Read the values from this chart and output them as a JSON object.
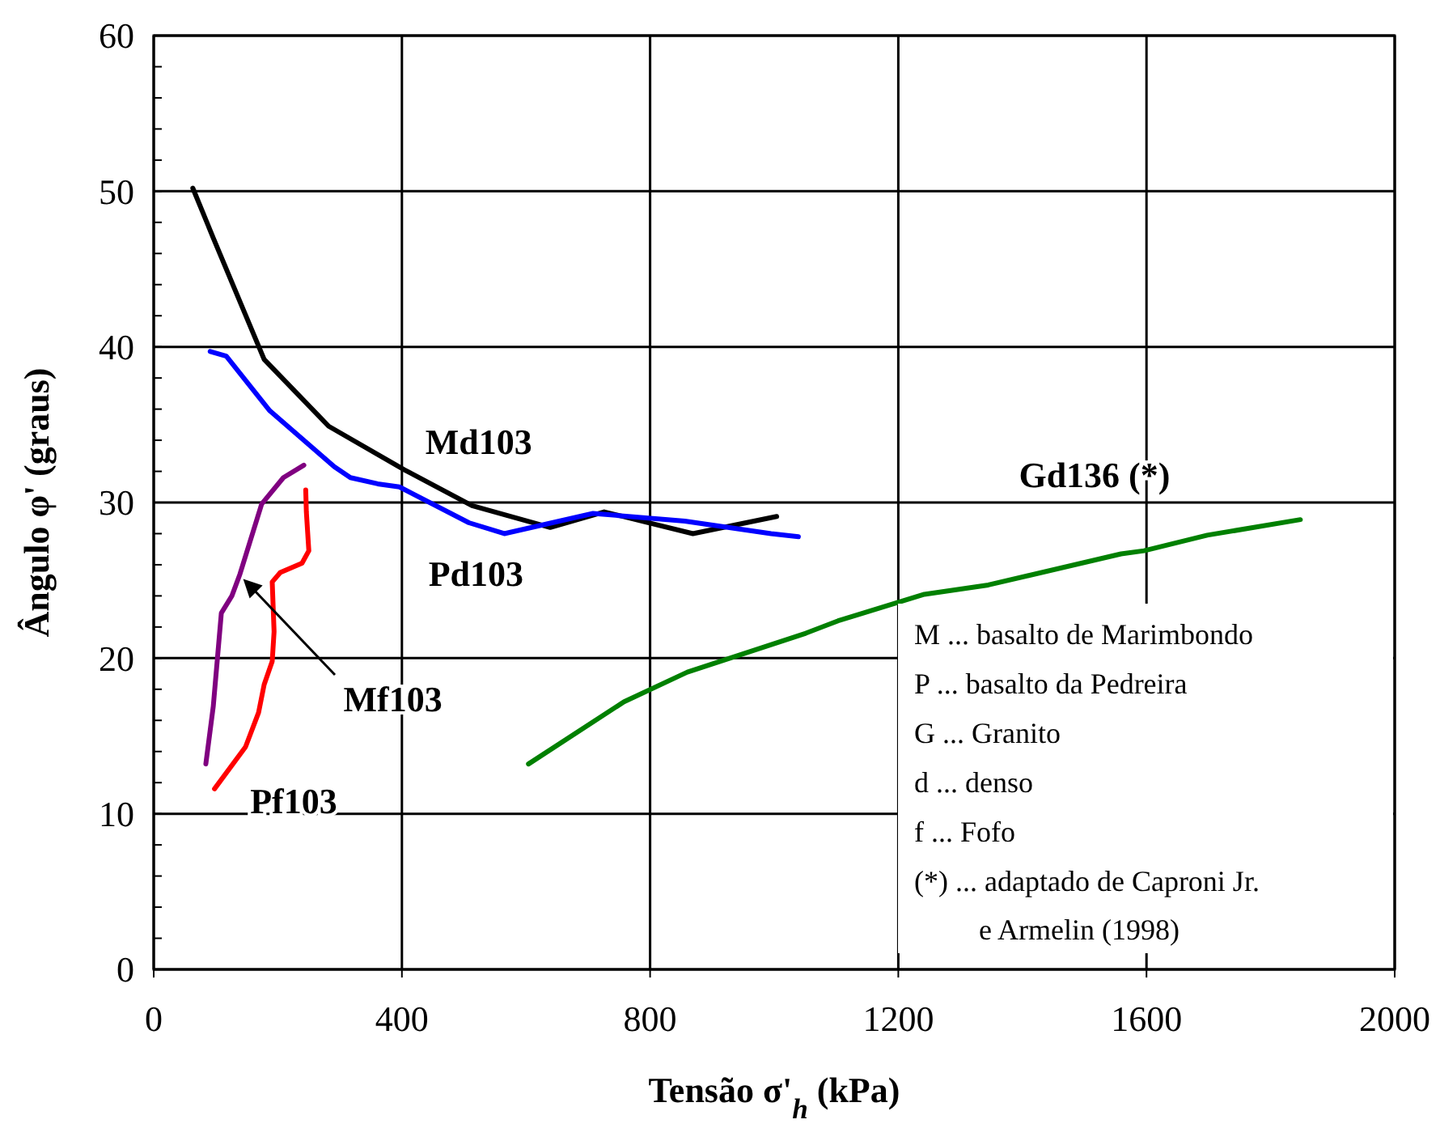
{
  "chart_data": {
    "type": "line",
    "xlabel": "Tensão σ'$_{h}$ (kPa)",
    "ylabel": "Ângulo φ' (graus)",
    "xlim": [
      0,
      2000
    ],
    "xticks": [
      0,
      400,
      800,
      1200,
      1600,
      2000
    ],
    "ylim": [
      0,
      60
    ],
    "yticks": [
      0,
      {
        "value": 2,
        "label": null
      },
      {
        "value": 4,
        "label": null
      },
      {
        "value": 6,
        "label": null
      },
      {
        "value": 8,
        "label": null
      },
      10,
      {
        "value": 12,
        "label": null
      },
      {
        "value": 14,
        "label": null
      },
      {
        "value": 16,
        "label": null
      },
      {
        "value": 18,
        "label": null
      },
      20,
      {
        "value": 22,
        "label": null
      },
      {
        "value": 24,
        "label": null
      },
      {
        "value": 26,
        "label": null
      },
      {
        "value": 28,
        "label": null
      },
      30,
      {
        "value": 32,
        "label": null
      },
      {
        "value": 34,
        "label": null
      },
      {
        "value": 36,
        "label": null
      },
      {
        "value": 38,
        "label": null
      },
      40,
      {
        "value": 42,
        "label": null
      },
      {
        "value": 44,
        "label": null
      },
      {
        "value": 46,
        "label": null
      },
      {
        "value": 48,
        "label": null
      },
      50,
      {
        "value": 52,
        "label": null
      },
      {
        "value": 54,
        "label": null
      },
      {
        "value": 56,
        "label": null
      },
      {
        "value": 58,
        "label": null
      },
      60
    ],
    "grid": true,
    "marker": "none",
    "line_style": "solid",
    "series": [
      {
        "name": "Md103",
        "color": "#000000",
        "x": [
          63,
          96,
          178,
          282,
          404,
          513,
          639,
          726,
          869,
          1004
        ],
        "values": [
          50.2,
          47.0,
          39.2,
          34.9,
          32.1,
          29.8,
          28.4,
          29.4,
          28.0,
          29.1
        ]
      },
      {
        "name": "Pd103",
        "color": "#0000ff",
        "x": [
          91,
          117,
          187,
          291,
          317,
          361,
          396,
          508,
          565,
          708,
          856,
          995,
          1039
        ],
        "values": [
          39.7,
          39.4,
          35.9,
          32.3,
          31.6,
          31.2,
          31.0,
          28.7,
          28.0,
          29.3,
          28.8,
          28.0,
          27.8
        ]
      },
      {
        "name": "Mf103",
        "color": "#800080",
        "x": [
          84,
          96,
          109,
          126,
          139,
          174,
          209,
          242
        ],
        "values": [
          13.2,
          16.9,
          22.9,
          24.0,
          25.4,
          29.9,
          31.6,
          32.4
        ]
      },
      {
        "name": "Pf103",
        "color": "#ff0000",
        "x": [
          98,
          148,
          169,
          178,
          191,
          194,
          191,
          204,
          239,
          250,
          246,
          245
        ],
        "values": [
          11.6,
          14.3,
          16.5,
          18.3,
          19.8,
          21.7,
          24.9,
          25.5,
          26.1,
          26.9,
          29.4,
          30.8
        ]
      },
      {
        "name": "Gd136 (*)",
        "color": "#008000",
        "x": [
          604,
          758,
          860,
          1051,
          1103,
          1242,
          1345,
          1559,
          1596,
          1698,
          1848
        ],
        "values": [
          13.2,
          17.2,
          19.1,
          21.6,
          22.4,
          24.1,
          24.7,
          26.7,
          26.9,
          27.9,
          28.9
        ]
      }
    ],
    "annotations": [
      "M ... basalto de Marimbondo",
      "P ... basalto da Pedreira",
      "G ... Granito",
      "d ... denso",
      "f ... Fofo",
      "(*) ... adaptado de Caproni Jr. e Armelin (1998)"
    ]
  }
}
